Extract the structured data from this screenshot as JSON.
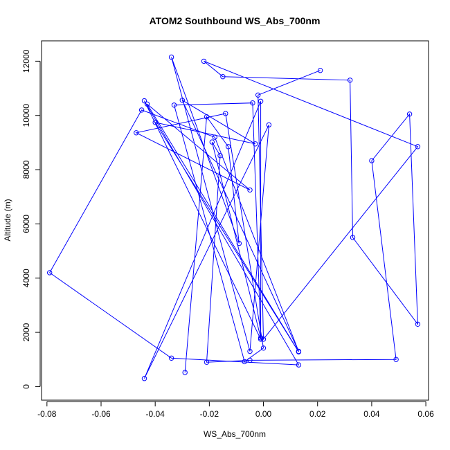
{
  "chart_data": {
    "type": "line",
    "title": "ATOM2 Southbound WS_Abs_700nm",
    "xlabel": "WS_Abs_700nm",
    "ylabel": "Altitude (m)",
    "xlim": [
      -0.082,
      0.061
    ],
    "ylim": [
      -500,
      12750
    ],
    "x_ticks": [
      -0.08,
      -0.06,
      -0.04,
      -0.02,
      0.0,
      0.02,
      0.04,
      0.06
    ],
    "x_tick_labels": [
      "-0.08",
      "-0.06",
      "-0.04",
      "-0.02",
      "0.00",
      "0.02",
      "0.04",
      "0.06"
    ],
    "y_ticks": [
      0,
      2000,
      4000,
      6000,
      8000,
      10000,
      12000
    ],
    "y_tick_labels": [
      "0",
      "2000",
      "4000",
      "6000",
      "8000",
      "10000",
      "12000"
    ],
    "grid": false,
    "legend": "none",
    "series": [
      {
        "color": "#0000ff",
        "markers": "open-circle",
        "points": [
          [
            -0.029,
            520
          ],
          [
            -0.021,
            9950
          ],
          [
            -0.013,
            8850
          ],
          [
            -0.009,
            5280
          ],
          [
            -0.034,
            12150
          ],
          [
            -0.005,
            1300
          ],
          [
            0.002,
            9650
          ],
          [
            -0.044,
            300
          ],
          [
            -0.001,
            10520
          ],
          [
            -0.001,
            1750
          ],
          [
            -0.044,
            10540
          ],
          [
            0.013,
            800
          ],
          [
            -0.034,
            1050
          ],
          [
            -0.079,
            4200
          ],
          [
            -0.045,
            10200
          ],
          [
            -0.018,
            9200
          ],
          [
            0.013,
            1300
          ],
          [
            -0.03,
            10560
          ],
          [
            -0.003,
            8950
          ],
          [
            -0.04,
            9740
          ],
          [
            0.013,
            1280
          ],
          [
            -0.043,
            10420
          ],
          [
            -0.005,
            7250
          ],
          [
            -0.047,
            9360
          ],
          [
            -0.014,
            10070
          ],
          [
            0.0,
            1420
          ],
          [
            -0.007,
            920
          ],
          [
            -0.033,
            10380
          ],
          [
            -0.004,
            10460
          ],
          [
            -0.001,
            1800
          ],
          [
            -0.019,
            9020
          ],
          [
            -0.016,
            8520
          ],
          [
            -0.021,
            900
          ],
          [
            -0.005,
            970
          ],
          [
            0.049,
            1000
          ],
          [
            0.04,
            8330
          ],
          [
            0.054,
            10050
          ],
          [
            0.057,
            2300
          ],
          [
            0.033,
            5500
          ],
          [
            0.032,
            11300
          ],
          [
            -0.015,
            11430
          ],
          [
            -0.022,
            12000
          ],
          [
            0.057,
            8850
          ],
          [
            0.0,
            1750
          ],
          [
            -0.002,
            10750
          ],
          [
            0.021,
            11660
          ]
        ]
      }
    ]
  }
}
